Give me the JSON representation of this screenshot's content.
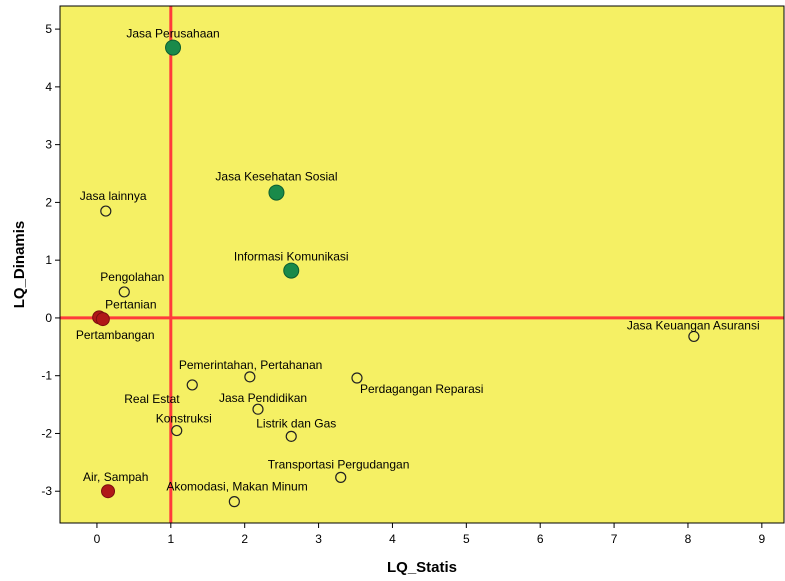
{
  "chart_data": {
    "type": "scatter",
    "title": "",
    "xlabel": "LQ_Statis",
    "ylabel": "LQ_Dinamis",
    "xlim": [
      -0.5,
      9.3
    ],
    "ylim": [
      -3.55,
      5.4
    ],
    "xticks": [
      0,
      1,
      2,
      3,
      4,
      5,
      6,
      7,
      8,
      9
    ],
    "yticks": [
      -3,
      -2,
      -1,
      0,
      1,
      2,
      3,
      4,
      5
    ],
    "grid": false,
    "background_color": "#f5f064",
    "reference_lines": {
      "x": 1,
      "y": 0,
      "color": "#ff3b3b"
    },
    "colors": {
      "high": "#1a8a4a",
      "low": "#b01818",
      "hollow": "#f5f064"
    },
    "points": [
      {
        "label": "Jasa Perusahaan",
        "x": 1.03,
        "y": 4.68,
        "style": "high"
      },
      {
        "label": "Jasa Kesehatan Sosial",
        "x": 2.43,
        "y": 2.17,
        "style": "high"
      },
      {
        "label": "Informasi Komunikasi",
        "x": 2.63,
        "y": 0.82,
        "style": "high"
      },
      {
        "label": "Jasa lainnya",
        "x": 0.12,
        "y": 1.85,
        "style": "hollow"
      },
      {
        "label": "Pengolahan",
        "x": 0.37,
        "y": 0.45,
        "style": "hollow"
      },
      {
        "label": "Pertanian",
        "x": 0.03,
        "y": 0.01,
        "style": "low"
      },
      {
        "label": "Pertambangan",
        "x": 0.08,
        "y": -0.02,
        "style": "low"
      },
      {
        "label": "Jasa Keuangan Asuransi",
        "x": 8.08,
        "y": -0.32,
        "style": "hollow"
      },
      {
        "label": "Pemerintahan, Pertahanan",
        "x": 2.07,
        "y": -1.02,
        "style": "hollow"
      },
      {
        "label": "Perdagangan Reparasi",
        "x": 3.52,
        "y": -1.04,
        "style": "hollow"
      },
      {
        "label": "Real Estat",
        "x": 1.29,
        "y": -1.16,
        "style": "hollow"
      },
      {
        "label": "Jasa Pendidikan",
        "x": 2.18,
        "y": -1.58,
        "style": "hollow"
      },
      {
        "label": "Konstruksi",
        "x": 1.08,
        "y": -1.95,
        "style": "hollow"
      },
      {
        "label": "Listrik dan Gas",
        "x": 2.63,
        "y": -2.05,
        "style": "hollow"
      },
      {
        "label": "Transportasi Pergudangan",
        "x": 3.3,
        "y": -2.76,
        "style": "hollow"
      },
      {
        "label": "Air, Sampah",
        "x": 0.15,
        "y": -3.0,
        "style": "low"
      },
      {
        "label": "Akomodasi, Makan Minum",
        "x": 1.86,
        "y": -3.18,
        "style": "hollow"
      }
    ]
  }
}
